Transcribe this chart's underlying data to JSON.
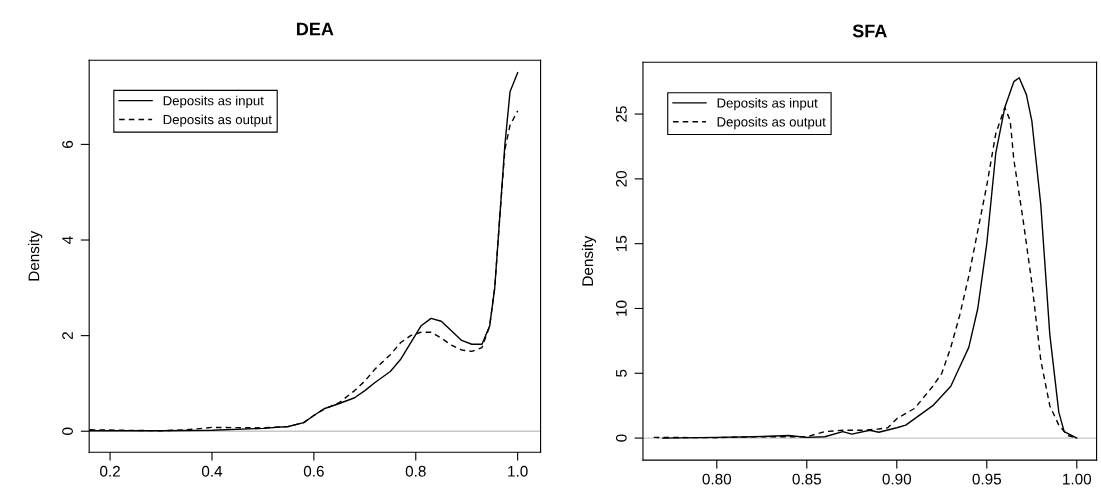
{
  "chart_data": [
    {
      "type": "line",
      "title": "DEA",
      "ylabel": "Density",
      "xlim": [
        0.159,
        1.045
      ],
      "ylim": [
        -0.44,
        7.76
      ],
      "xticks": [
        {
          "value": 0.2,
          "label": "0.2"
        },
        {
          "value": 0.4,
          "label": "0.4"
        },
        {
          "value": 0.6,
          "label": "0.6"
        },
        {
          "value": 0.8,
          "label": "0.8"
        },
        {
          "value": 1.0,
          "label": "1.0"
        }
      ],
      "yticks": [
        0,
        2,
        4,
        6
      ],
      "legend": "top left",
      "grid": false,
      "ref_lines": [
        {
          "axis": "y",
          "value": 0,
          "color": "#c8c8c8",
          "line_style": "solid"
        }
      ],
      "series": [
        {
          "name": "Deposits as input",
          "color": "#000000",
          "line_style": "solid",
          "x": [
            0.16,
            0.3,
            0.4,
            0.5,
            0.55,
            0.58,
            0.6,
            0.62,
            0.65,
            0.68,
            0.7,
            0.72,
            0.75,
            0.77,
            0.79,
            0.81,
            0.83,
            0.85,
            0.87,
            0.89,
            0.91,
            0.93,
            0.945,
            0.955,
            0.965,
            0.975,
            0.985,
            1.0
          ],
          "values": [
            0.01,
            0.01,
            0.02,
            0.06,
            0.1,
            0.18,
            0.33,
            0.47,
            0.58,
            0.7,
            0.85,
            1.02,
            1.25,
            1.5,
            1.85,
            2.2,
            2.36,
            2.3,
            2.1,
            1.9,
            1.82,
            1.82,
            2.2,
            3.0,
            4.5,
            6.0,
            7.1,
            7.5
          ]
        },
        {
          "name": "Deposits as output",
          "color": "#000000",
          "line_style": "dashed",
          "x": [
            0.16,
            0.3,
            0.35,
            0.4,
            0.5,
            0.55,
            0.58,
            0.6,
            0.62,
            0.65,
            0.68,
            0.7,
            0.72,
            0.75,
            0.77,
            0.79,
            0.81,
            0.83,
            0.85,
            0.87,
            0.89,
            0.91,
            0.93,
            0.945,
            0.955,
            0.965,
            0.975,
            0.985,
            1.0
          ],
          "values": [
            0.03,
            0.01,
            0.03,
            0.08,
            0.07,
            0.1,
            0.18,
            0.33,
            0.46,
            0.6,
            0.85,
            1.05,
            1.3,
            1.6,
            1.85,
            2.0,
            2.07,
            2.07,
            1.95,
            1.8,
            1.7,
            1.67,
            1.75,
            2.2,
            3.0,
            4.5,
            5.9,
            6.4,
            6.7
          ]
        }
      ]
    },
    {
      "type": "line",
      "title": "SFA",
      "ylabel": "Density",
      "xlim": [
        0.759,
        1.011
      ],
      "ylim": [
        -1.7,
        29.0
      ],
      "xticks": [
        {
          "value": 0.8,
          "label": "0.80"
        },
        {
          "value": 0.85,
          "label": "0.85"
        },
        {
          "value": 0.9,
          "label": "0.90"
        },
        {
          "value": 0.95,
          "label": "0.95"
        },
        {
          "value": 1.0,
          "label": "1.00"
        }
      ],
      "yticks": [
        0,
        5,
        10,
        15,
        20,
        25
      ],
      "legend": "top left",
      "grid": false,
      "ref_lines": [
        {
          "axis": "y",
          "value": 0,
          "color": "#c8c8c8",
          "line_style": "solid"
        }
      ],
      "series": [
        {
          "name": "Deposits as input",
          "color": "#000000",
          "line_style": "solid",
          "x": [
            0.77,
            0.8,
            0.82,
            0.84,
            0.85,
            0.86,
            0.87,
            0.875,
            0.885,
            0.89,
            0.9,
            0.905,
            0.91,
            0.92,
            0.93,
            0.935,
            0.94,
            0.945,
            0.95,
            0.955,
            0.96,
            0.965,
            0.968,
            0.972,
            0.975,
            0.98,
            0.985,
            0.99,
            0.993,
            1.0
          ],
          "values": [
            0.0,
            0.05,
            0.1,
            0.2,
            0.05,
            0.1,
            0.5,
            0.3,
            0.6,
            0.45,
            0.8,
            1.0,
            1.5,
            2.5,
            4.0,
            5.5,
            7.0,
            10,
            15,
            22,
            25.5,
            27.5,
            27.8,
            26.5,
            24.5,
            18,
            8,
            2,
            0.5,
            0
          ]
        },
        {
          "name": "Deposits as output",
          "color": "#000000",
          "line_style": "dashed",
          "x": [
            0.765,
            0.8,
            0.82,
            0.85,
            0.86,
            0.87,
            0.88,
            0.89,
            0.895,
            0.9,
            0.91,
            0.92,
            0.925,
            0.93,
            0.935,
            0.94,
            0.945,
            0.95,
            0.955,
            0.96,
            0.963,
            0.965,
            0.97,
            0.975,
            0.98,
            0.985,
            0.99,
            0.995,
            1.0
          ],
          "values": [
            0.05,
            0.03,
            0.1,
            0.1,
            0.5,
            0.6,
            0.6,
            0.7,
            0.8,
            1.5,
            2.3,
            4.0,
            5.0,
            7.0,
            9.5,
            12.5,
            16.0,
            19.5,
            23.5,
            25.5,
            24.5,
            21.5,
            17,
            12.0,
            6,
            2.5,
            1.0,
            0.2,
            0
          ]
        }
      ]
    }
  ]
}
